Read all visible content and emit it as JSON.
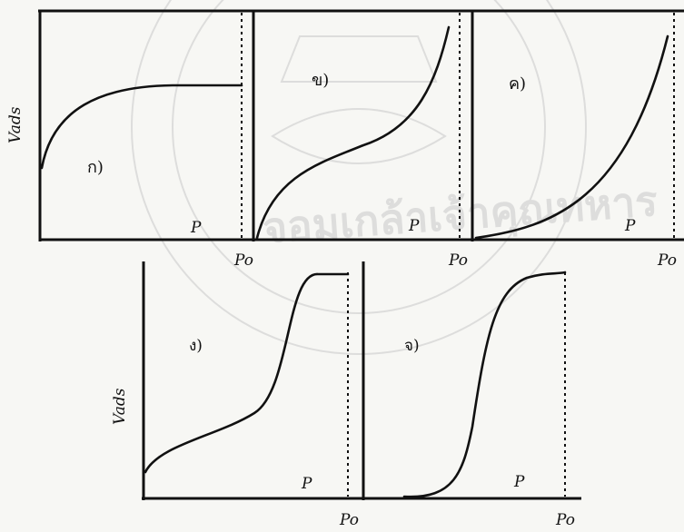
{
  "figure": {
    "panels": [
      {
        "id": "a",
        "panel_label": "ก)",
        "y_label": "Vads",
        "x_label": "P",
        "end_label": "Po"
      },
      {
        "id": "b",
        "panel_label": "ข)",
        "x_label": "P",
        "end_label": "Po"
      },
      {
        "id": "c",
        "panel_label": "ค)",
        "x_label": "P",
        "end_label": "Po"
      },
      {
        "id": "d",
        "panel_label": "ง)",
        "y_label": "Vads",
        "x_label": "P",
        "end_label": "Po"
      },
      {
        "id": "e",
        "panel_label": "จ)",
        "x_label": "P",
        "end_label": "Po"
      }
    ]
  },
  "watermark": {
    "text": "จอมเกล้าเจ้าคุณทหาร"
  }
}
